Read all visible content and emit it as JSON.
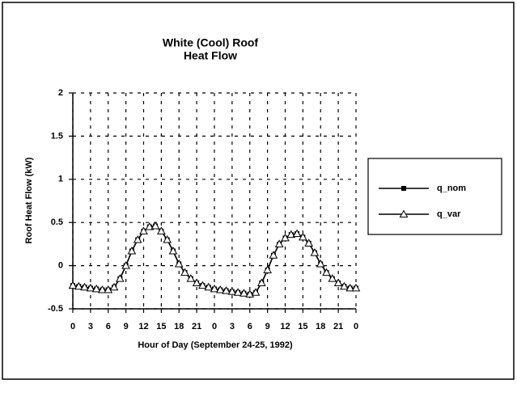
{
  "chart_data": {
    "type": "line",
    "title": [
      "White (Cool) Roof",
      "Heat Flow"
    ],
    "xlabel": "Hour of Day (September 24-25, 1992)",
    "ylabel": "Roof Heat Flow (kW)",
    "x": [
      0,
      1,
      2,
      3,
      4,
      5,
      6,
      7,
      8,
      9,
      10,
      11,
      12,
      13,
      14,
      15,
      16,
      17,
      18,
      19,
      20,
      21,
      22,
      23,
      24,
      25,
      26,
      27,
      28,
      29,
      30,
      31,
      32,
      33,
      34,
      35,
      36,
      37,
      38,
      39,
      40,
      41,
      42,
      43,
      44,
      45,
      46,
      47,
      48
    ],
    "series": [
      {
        "name": "q_nom",
        "color": "#000000",
        "marker": "square",
        "values": [
          -0.23,
          -0.24,
          -0.25,
          -0.26,
          -0.27,
          -0.28,
          -0.28,
          -0.25,
          -0.15,
          0.0,
          0.17,
          0.3,
          0.4,
          0.45,
          0.46,
          0.4,
          0.3,
          0.17,
          0.02,
          -0.08,
          -0.15,
          -0.2,
          -0.23,
          -0.25,
          -0.27,
          -0.28,
          -0.29,
          -0.3,
          -0.31,
          -0.32,
          -0.33,
          -0.31,
          -0.2,
          -0.05,
          0.12,
          0.25,
          0.32,
          0.36,
          0.37,
          0.33,
          0.26,
          0.15,
          0.02,
          -0.08,
          -0.15,
          -0.2,
          -0.24,
          -0.26,
          -0.26
        ]
      },
      {
        "name": "q_var",
        "color": "#000000",
        "marker": "triangle",
        "values": [
          -0.23,
          -0.24,
          -0.25,
          -0.26,
          -0.27,
          -0.28,
          -0.28,
          -0.25,
          -0.15,
          0.0,
          0.17,
          0.3,
          0.4,
          0.45,
          0.46,
          0.4,
          0.3,
          0.17,
          0.02,
          -0.08,
          -0.15,
          -0.2,
          -0.23,
          -0.25,
          -0.27,
          -0.28,
          -0.29,
          -0.3,
          -0.31,
          -0.32,
          -0.33,
          -0.31,
          -0.2,
          -0.05,
          0.12,
          0.25,
          0.32,
          0.36,
          0.37,
          0.33,
          0.26,
          0.15,
          0.02,
          -0.08,
          -0.15,
          -0.2,
          -0.24,
          -0.26,
          -0.26
        ]
      }
    ],
    "xlim": [
      0,
      48
    ],
    "xticks": [
      0,
      3,
      6,
      9,
      12,
      15,
      18,
      21,
      {
        "value": 24,
        "label": "0"
      },
      {
        "value": 27,
        "label": "3"
      },
      {
        "value": 30,
        "label": "6"
      },
      {
        "value": 33,
        "label": "9"
      },
      {
        "value": 36,
        "label": "12"
      },
      {
        "value": 39,
        "label": "15"
      },
      {
        "value": 42,
        "label": "18"
      },
      {
        "value": 45,
        "label": "21"
      },
      {
        "value": 48,
        "label": "0"
      }
    ],
    "ylim": [
      -0.5,
      2
    ],
    "yticks": [
      -0.5,
      0,
      0.5,
      1,
      1.5,
      2
    ],
    "grid": true,
    "legend": "right"
  }
}
